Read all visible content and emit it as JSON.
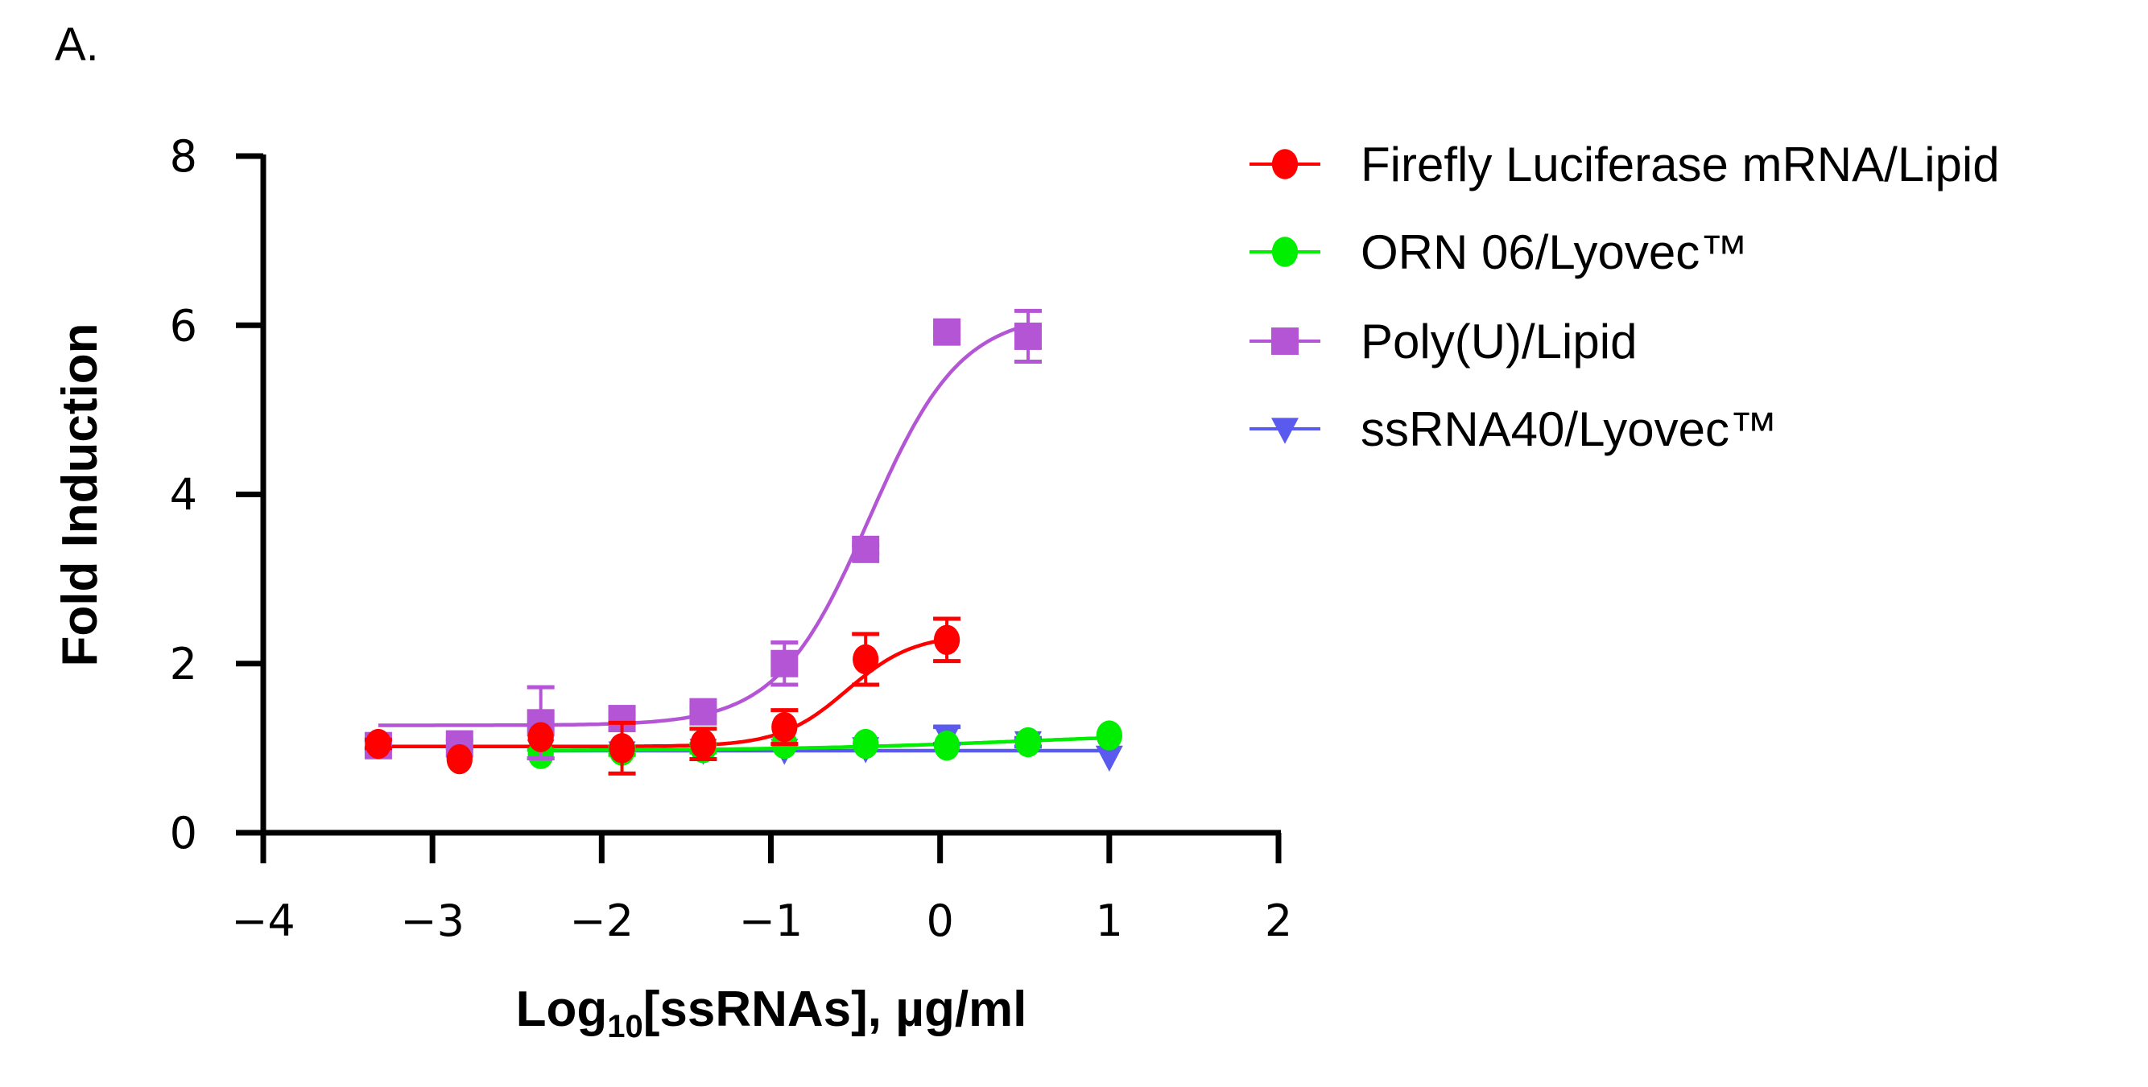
{
  "panel_label": "A.",
  "chart_data": {
    "type": "scatter",
    "title": "",
    "xlabel": "Log10[ssRNAs], µg/ml",
    "xlabel_parts": {
      "pre": "Log",
      "sub": "10",
      "post": "[ssRNAs], µg/ml"
    },
    "ylabel": "Fold Induction",
    "xlim": [
      -4,
      2
    ],
    "ylim": [
      0,
      8
    ],
    "xticks": [
      -4,
      -3,
      -2,
      -1,
      0,
      1,
      2
    ],
    "xtick_labels": [
      "−4",
      "−3",
      "−2",
      "−1",
      "0",
      "1",
      "2"
    ],
    "yticks": [
      0,
      2,
      4,
      6,
      8
    ],
    "ytick_labels": [
      "0",
      "2",
      "4",
      "6",
      "8"
    ],
    "grid": false,
    "legend_position": "right",
    "series": [
      {
        "name": "Firefly Luciferase mRNA/Lipid",
        "color": "#ff0000",
        "marker": "circle",
        "x": [
          -3.32,
          -2.84,
          -2.36,
          -1.88,
          -1.4,
          -0.92,
          -0.44,
          0.04
        ],
        "y": [
          1.05,
          0.87,
          1.13,
          1.0,
          1.05,
          1.25,
          2.05,
          2.28
        ],
        "err": [
          0.05,
          0.0,
          0.0,
          0.3,
          0.18,
          0.2,
          0.3,
          0.25
        ],
        "fit": {
          "bottom": 1.02,
          "top": 2.35,
          "log_ec50": -0.55,
          "hill": 2.2
        }
      },
      {
        "name": "ORN 06/Lyovec™",
        "color": "#00ee00",
        "marker": "circle",
        "x": [
          -2.36,
          -1.88,
          -1.4,
          -0.92,
          -0.44,
          0.04,
          0.52,
          1.0
        ],
        "y": [
          0.93,
          0.97,
          1.0,
          1.05,
          1.05,
          1.03,
          1.07,
          1.15
        ],
        "err": [
          0.05,
          0.05,
          0.05,
          0.03,
          0.03,
          0.03,
          0.03,
          0.03
        ],
        "fit": {
          "bottom": 0.97,
          "top": 1.2,
          "log_ec50": 0.5,
          "hill": 0.6
        }
      },
      {
        "name": "Poly(U)/Lipid",
        "color": "#b455d6",
        "marker": "square",
        "x": [
          -3.32,
          -2.84,
          -2.36,
          -1.88,
          -1.4,
          -0.92,
          -0.44,
          0.04,
          0.52
        ],
        "y": [
          1.03,
          1.05,
          1.3,
          1.35,
          1.43,
          2.0,
          3.35,
          5.92,
          5.87
        ],
        "err": [
          0.05,
          0.05,
          0.42,
          0.05,
          0.05,
          0.25,
          0.05,
          0.05,
          0.3
        ],
        "fit": {
          "bottom": 1.27,
          "top": 6.15,
          "log_ec50": -0.42,
          "hill": 1.6
        }
      },
      {
        "name": "ssRNA40/Lyovec™",
        "color": "#5a5aee",
        "marker": "triangle-down",
        "x": [
          -2.36,
          -1.88,
          -1.4,
          -0.92,
          -0.44,
          0.04,
          0.52,
          1.0
        ],
        "y": [
          0.97,
          0.95,
          0.98,
          0.98,
          1.0,
          1.15,
          1.07,
          0.9
        ],
        "err": [
          0.03,
          0.03,
          0.03,
          0.03,
          0.03,
          0.1,
          0.05,
          0.03
        ],
        "fit": {
          "bottom": 0.97,
          "top": 0.97,
          "log_ec50": 0,
          "hill": 1
        }
      }
    ]
  }
}
